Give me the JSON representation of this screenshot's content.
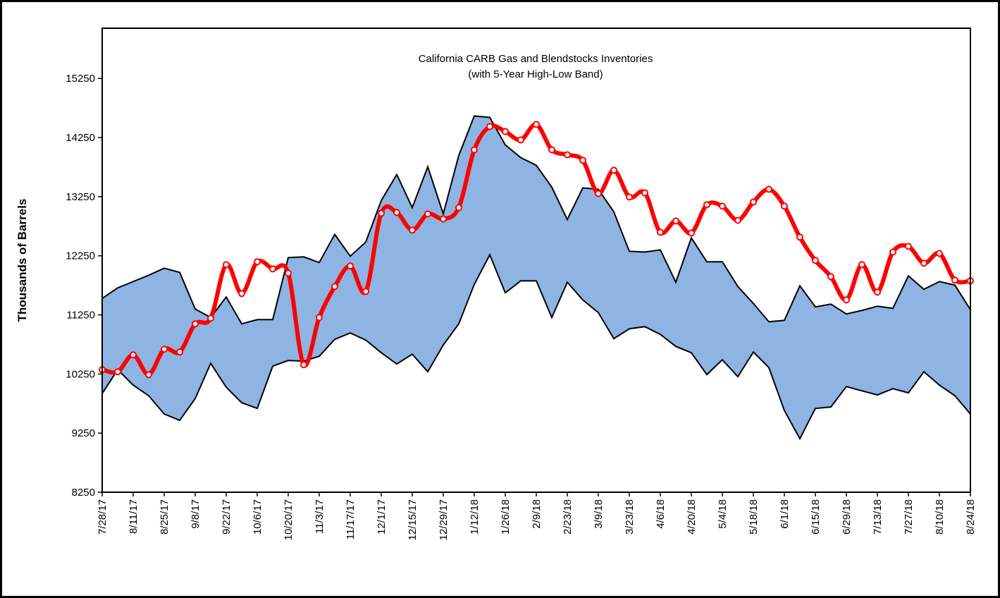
{
  "chart_data": {
    "type": "band-line",
    "title": "California CARB Gas and Blendstocks Inventories",
    "subtitle": "(with 5-Year High-Low Band)",
    "y_label": "Thousands of Barrels",
    "categories": [
      "7/28/17",
      null,
      "8/11/17",
      null,
      "8/25/17",
      null,
      "9/8/17",
      null,
      "9/22/17",
      null,
      "10/6/17",
      null,
      "10/20/17",
      null,
      "11/3/17",
      null,
      "11/17/17",
      null,
      "12/1/17",
      null,
      "12/15/17",
      null,
      "12/29/17",
      null,
      "1/12/18",
      null,
      "1/26/18",
      null,
      "2/9/18",
      null,
      "2/23/18",
      null,
      "3/9/18",
      null,
      "3/23/18",
      null,
      "4/6/18",
      null,
      "4/20/18",
      null,
      "5/4/18",
      null,
      "5/18/18",
      null,
      "6/1/18",
      null,
      "6/15/18",
      null,
      "6/29/18",
      null,
      "7/13/18",
      null,
      "7/27/18",
      null,
      "8/10/18",
      null,
      "8/24/18"
    ],
    "band": {
      "color": "#8db4e2",
      "line_color": "#000000",
      "high": [
        11528,
        11707,
        11814,
        11921,
        12040,
        11969,
        11349,
        11206,
        11552,
        11099,
        11170,
        11170,
        12219,
        12231,
        12136,
        12612,
        12243,
        12481,
        13184,
        13625,
        13065,
        13756,
        12958,
        13947,
        14615,
        14591,
        14126,
        13911,
        13780,
        13411,
        12863,
        13399,
        13375,
        12994,
        12326,
        12314,
        12350,
        11802,
        12553,
        12148,
        12148,
        11730,
        11444,
        11134,
        11158,
        11742,
        11385,
        11432,
        11266,
        11325,
        11397,
        11361,
        11909,
        11683,
        11814,
        11754,
        11337
      ],
      "low": [
        9919,
        10324,
        10062,
        9883,
        9573,
        9466,
        9835,
        10431,
        10026,
        9764,
        9668,
        10383,
        10479,
        10467,
        10550,
        10836,
        10944,
        10824,
        10610,
        10419,
        10586,
        10288,
        10741,
        11099,
        11766,
        12267,
        11623,
        11826,
        11826,
        11206,
        11802,
        11504,
        11289,
        10848,
        11015,
        11051,
        10920,
        10717,
        10610,
        10240,
        10491,
        10205,
        10622,
        10360,
        9633,
        9156,
        9668,
        9692,
        10038,
        9966,
        9895,
        10002,
        9931,
        10288,
        10062,
        9883,
        9573
      ]
    },
    "series": [
      {
        "color": "#ff0000",
        "values": [
          10324,
          10288,
          10574,
          10240,
          10670,
          10622,
          11099,
          11194,
          12100,
          11611,
          12148,
          12028,
          11957,
          10407,
          11206,
          11730,
          12076,
          11647,
          12970,
          12982,
          12684,
          12958,
          12875,
          13065,
          14042,
          14436,
          14352,
          14210,
          14472,
          14042,
          13959,
          13864,
          13303,
          13697,
          13244,
          13315,
          12648,
          12839,
          12636,
          13113,
          13089,
          12851,
          13160,
          13375,
          13089,
          12565,
          12171,
          11897,
          11504,
          12100,
          11635,
          12314,
          12409,
          12124,
          12290,
          11838,
          11826
        ]
      }
    ],
    "ylim": [
      8250,
      16100
    ],
    "yticks": [
      8250,
      9250,
      10250,
      11250,
      12250,
      13250,
      14250,
      15250
    ]
  }
}
